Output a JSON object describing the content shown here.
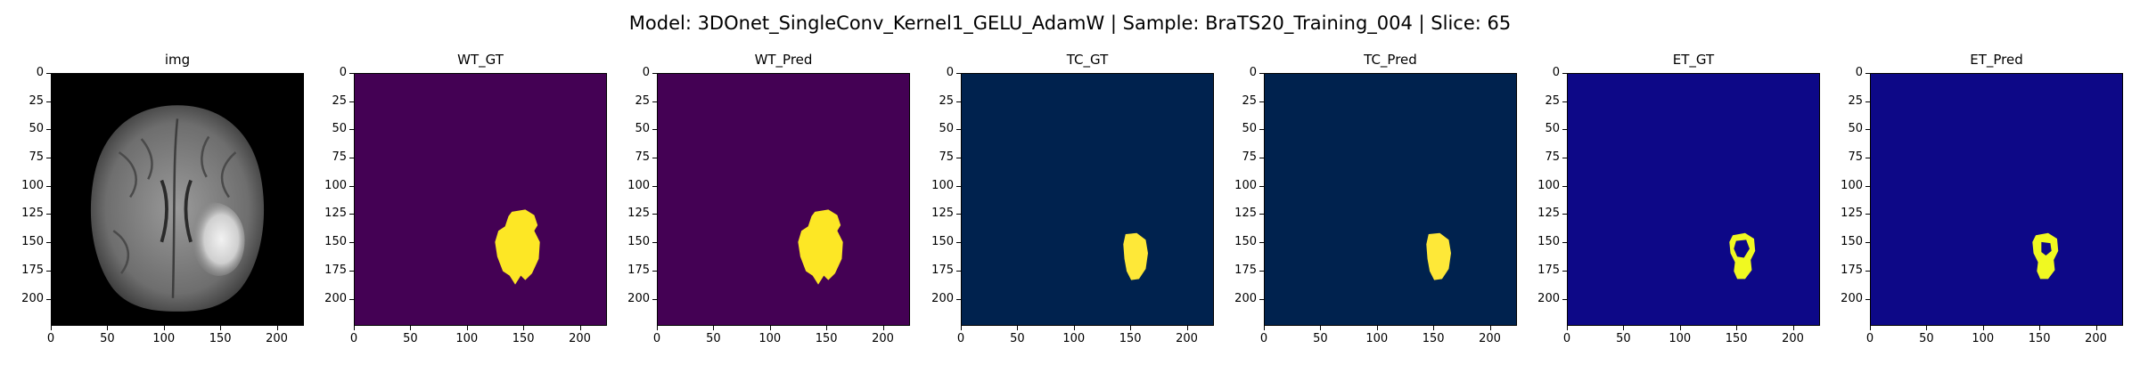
{
  "figure": {
    "title": "Model: 3DOnet_SingleConv_Kernel1_GELU_AdamW | Sample: BraTS20_Training_004 | Slice: 65"
  },
  "panels": [
    {
      "title": "img",
      "colormap": "gray",
      "background": "#000000",
      "foreground": "#ffffff"
    },
    {
      "title": "WT_GT",
      "colormap": "viridis",
      "background": "#440154",
      "foreground": "#fde725"
    },
    {
      "title": "WT_Pred",
      "colormap": "viridis",
      "background": "#440154",
      "foreground": "#fde725"
    },
    {
      "title": "TC_GT",
      "colormap": "cividis",
      "background": "#00224e",
      "foreground": "#fee838"
    },
    {
      "title": "TC_Pred",
      "colormap": "cividis",
      "background": "#00224e",
      "foreground": "#fee838"
    },
    {
      "title": "ET_GT",
      "colormap": "plasma",
      "background": "#0d0887",
      "foreground": "#f0f921"
    },
    {
      "title": "ET_Pred",
      "colormap": "plasma",
      "background": "#0d0887",
      "foreground": "#f0f921"
    }
  ],
  "axes": {
    "x_ticks": [
      "0",
      "50",
      "100",
      "150",
      "200"
    ],
    "y_ticks": [
      "0",
      "25",
      "50",
      "75",
      "100",
      "125",
      "150",
      "175",
      "200"
    ],
    "extent": 224
  }
}
